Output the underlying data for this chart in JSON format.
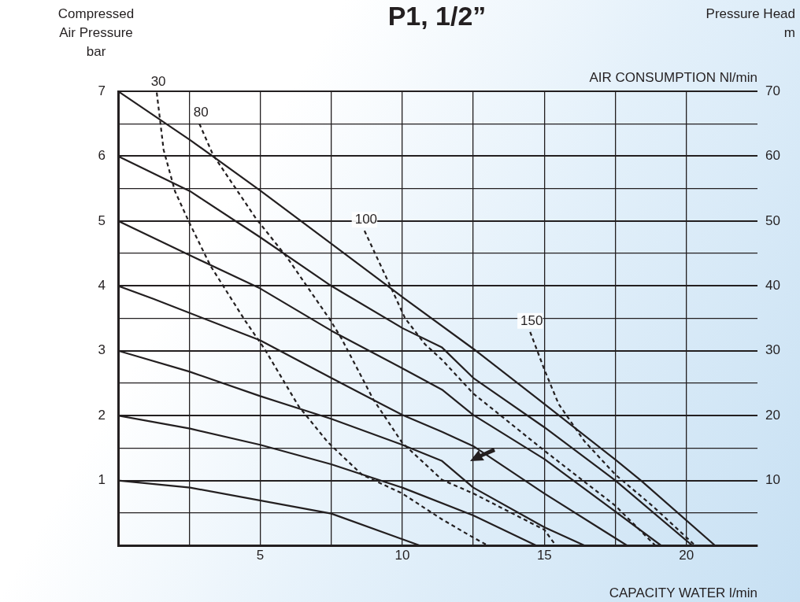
{
  "chart_data": {
    "type": "line",
    "title": "P1, 1/2”",
    "xlabel": "CAPACITY WATER l/min",
    "ylabel": "Compressed\nAir Pressure\nbar",
    "y2label": "Pressure Head\nm",
    "annotations": [
      "AIR CONSUMPTION Nl/min"
    ],
    "xlim": [
      0,
      22.5
    ],
    "xticks": [
      {
        "value": 2.5,
        "label": null
      },
      5,
      {
        "value": 7.5,
        "label": null
      },
      10,
      {
        "value": 12.5,
        "label": null
      },
      15,
      {
        "value": 17.5,
        "label": null
      },
      20
    ],
    "ylim": [
      0,
      7
    ],
    "yticks": [
      {
        "value": 0.5,
        "label": null
      },
      1,
      {
        "value": 1.5,
        "label": null
      },
      2,
      {
        "value": 2.5,
        "label": null
      },
      3,
      {
        "value": 3.5,
        "label": null
      },
      4,
      {
        "value": 4.5,
        "label": null
      },
      5,
      {
        "value": 5.5,
        "label": null
      },
      6,
      {
        "value": 6.5,
        "label": null
      },
      7
    ],
    "y2lim": [
      0,
      70
    ],
    "y2ticks": [
      10,
      20,
      30,
      40,
      50,
      60,
      70
    ],
    "grid": true,
    "legend": false,
    "marker": "none",
    "series": [
      {
        "color": "#231f20",
        "line_style": "solid",
        "x": [
          0,
          2.53,
          5,
          7.5,
          10,
          12.5,
          14.7
        ],
        "values": [
          2.0,
          1.8,
          1.55,
          1.25,
          0.89,
          0.46,
          0
        ]
      },
      {
        "color": "#231f20",
        "line_style": "solid",
        "x": [
          0,
          2.53,
          7.5,
          10.6
        ],
        "values": [
          1.0,
          0.89,
          0.49,
          0
        ]
      },
      {
        "color": "#231f20",
        "line_style": "solid",
        "x": [
          0,
          2.5,
          5,
          7.5,
          10,
          11.4,
          12.5,
          15,
          16.4
        ],
        "values": [
          3.0,
          2.68,
          2.3,
          1.95,
          1.55,
          1.3,
          0.89,
          0.28,
          0
        ]
      },
      {
        "color": "#231f20",
        "line_style": "solid",
        "x": [
          0,
          1.24,
          5,
          7.5,
          10,
          11.4,
          12.5,
          15,
          17.9
        ],
        "values": [
          4.0,
          3.8,
          3.16,
          2.58,
          2.01,
          1.75,
          1.53,
          0.8,
          0
        ]
      },
      {
        "color": "#231f20",
        "line_style": "solid",
        "x": [
          0,
          2.53,
          5,
          7.5,
          10,
          11.4,
          12.5,
          15,
          19.1
        ],
        "values": [
          5.0,
          4.47,
          3.96,
          3.31,
          2.73,
          2.4,
          2.01,
          1.33,
          0
        ]
      },
      {
        "color": "#231f20",
        "line_style": "solid",
        "x": [
          0,
          2.53,
          5,
          7.5,
          10,
          11.4,
          12.5,
          15,
          17.5,
          20.2
        ],
        "values": [
          6.0,
          5.46,
          4.75,
          4.0,
          3.35,
          3.05,
          2.58,
          1.82,
          1.0,
          0
        ]
      },
      {
        "color": "#231f20",
        "line_style": "solid",
        "x": [
          0,
          2.53,
          5,
          7.5,
          10,
          12.5,
          15,
          17.5,
          18.4,
          21
        ],
        "values": [
          7.0,
          6.25,
          5.47,
          4.65,
          3.83,
          3.03,
          2.18,
          1.32,
          1.0,
          0
        ]
      },
      {
        "name": "30",
        "color": "#231f20",
        "line_style": "dashed",
        "x": [
          1.36,
          1.6,
          2.0,
          2.5,
          3.25,
          4.46,
          5.15,
          6.36,
          7.38,
          8.58,
          10,
          11.4,
          12.5,
          13
        ],
        "values": [
          6.98,
          6.1,
          5.46,
          4.98,
          4.31,
          3.47,
          3.03,
          2.14,
          1.59,
          1.09,
          0.8,
          0.4,
          0.12,
          0
        ]
      },
      {
        "name": "80",
        "color": "#231f20",
        "line_style": "dashed",
        "x": [
          2.86,
          3.34,
          4.85,
          5.96,
          7.47,
          7.86,
          8.98,
          10,
          11.4,
          12.5,
          15,
          15.4
        ],
        "values": [
          6.5,
          6.02,
          5.04,
          4.43,
          3.47,
          3.19,
          2.25,
          1.58,
          1.01,
          0.8,
          0.24,
          0
        ]
      },
      {
        "name": "100",
        "color": "#231f20",
        "line_style": "dashed",
        "x": [
          8.67,
          9.49,
          10.1,
          10.8,
          11.4,
          12.5,
          15,
          17.5,
          18.9
        ],
        "values": [
          4.85,
          4.08,
          3.5,
          3.1,
          2.86,
          2.34,
          1.46,
          0.61,
          0
        ]
      },
      {
        "name": "150",
        "color": "#231f20",
        "line_style": "dashed",
        "x": [
          14.5,
          15,
          15.5,
          16.4,
          17.5,
          18.8,
          20.3
        ],
        "values": [
          3.29,
          2.71,
          2.18,
          1.61,
          1.09,
          0.61,
          0
        ]
      }
    ]
  }
}
